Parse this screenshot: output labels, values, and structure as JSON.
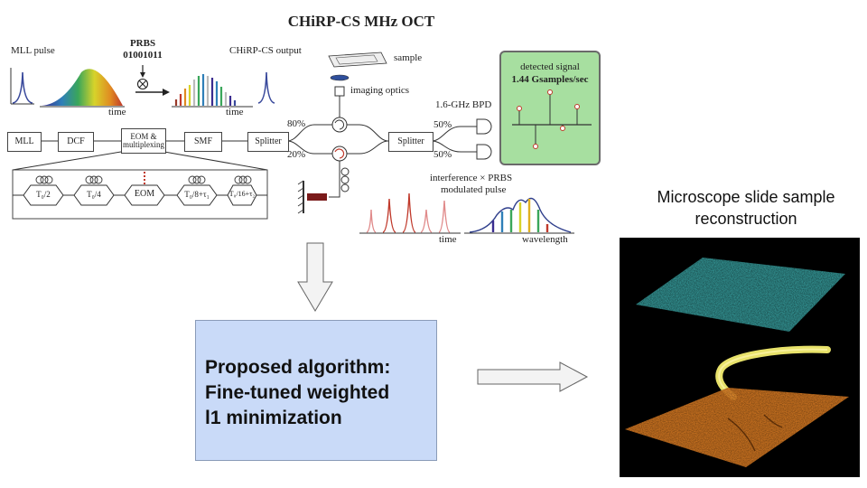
{
  "diagram": {
    "title": "CHiRP-CS MHz OCT",
    "mll_pulse_label": "MLL pulse",
    "prbs_label": "PRBS",
    "prbs_bits": "01001011",
    "multiply_symbol": "⊗",
    "chirp_output_label": "CHiRP-CS output",
    "time_label": "time",
    "sample_label": "sample",
    "imaging_optics_label": "imaging optics",
    "bpd_label": "1.6-GHz BPD",
    "detected_signal_label": "detected signal",
    "sample_rate_label": "1.44 Gsamples/sec",
    "split_80": "80%",
    "split_20": "20%",
    "split_50_top": "50%",
    "split_50_bottom": "50%",
    "blocks": {
      "mll": "MLL",
      "dcf": "DCF",
      "eom_mux": "EOM & multiplexing",
      "smf": "SMF",
      "splitter_1": "Splitter",
      "splitter_2": "Splitter"
    },
    "mux_stages": [
      "T₀/2",
      "T₀/4",
      "EOM",
      "T₀/8+τ₁",
      "T₀/16+τ₂"
    ],
    "interference_label": "interference × PRBS",
    "modulated_pulse_label": "modulated pulse",
    "wavelength_label": "wavelength"
  },
  "algorithm": {
    "line1": "Proposed algorithm:",
    "line2": "Fine-tuned weighted",
    "line3": "l1 minimization"
  },
  "reconstruction": {
    "title_line1": "Microscope slide sample",
    "title_line2": "reconstruction"
  },
  "colors": {
    "algo_box": "#c9daf8",
    "signal_panel": "#a7dfa0",
    "layer_top": "#3aa6a6",
    "layer_mid": "#e8e26a",
    "layer_bottom": "#d77a22"
  }
}
